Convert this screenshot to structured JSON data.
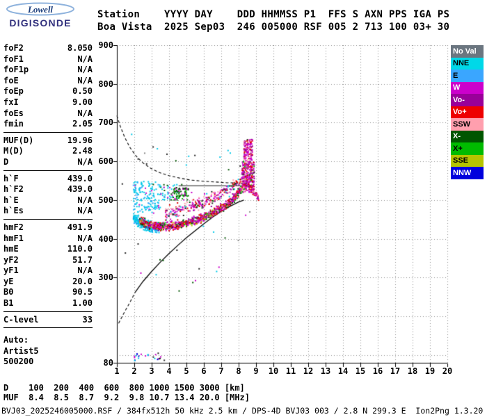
{
  "logo": {
    "line1": "Lowell",
    "line2": "DIGISONDE"
  },
  "header": {
    "line1": "Station    YYYY DAY    DDD HHMMSS P1  FFS S AXN PPS IGA PS",
    "line2": "Boa Vista  2025 Sep03  246 005000 RSF 005 2 713 100 03+ 30"
  },
  "params": [
    {
      "label": "foF2",
      "value": "8.050"
    },
    {
      "label": "foF1",
      "value": "N/A"
    },
    {
      "label": "foF1p",
      "value": "N/A"
    },
    {
      "label": "foE",
      "value": "N/A"
    },
    {
      "label": "foEp",
      "value": "0.50"
    },
    {
      "label": "fxI",
      "value": "9.00"
    },
    {
      "label": "foEs",
      "value": "N/A"
    },
    {
      "label": "fmin",
      "value": "2.05"
    },
    {
      "divider": true
    },
    {
      "label": "MUF(D)",
      "value": "19.96"
    },
    {
      "label": "M(D)",
      "value": "2.48"
    },
    {
      "label": "D",
      "value": "N/A"
    },
    {
      "divider": true
    },
    {
      "label": "h`F",
      "value": "439.0"
    },
    {
      "label": "h`F2",
      "value": "439.0"
    },
    {
      "label": "h`E",
      "value": "N/A"
    },
    {
      "label": "h`Es",
      "value": "N/A"
    },
    {
      "divider": true
    },
    {
      "label": "hmF2",
      "value": "491.9"
    },
    {
      "label": "hmF1",
      "value": "N/A"
    },
    {
      "label": "hmE",
      "value": "110.0"
    },
    {
      "label": "yF2",
      "value": "51.7"
    },
    {
      "label": "yF1",
      "value": "N/A"
    },
    {
      "label": "yE",
      "value": "20.0"
    },
    {
      "label": "B0",
      "value": "90.5"
    },
    {
      "label": "B1",
      "value": "1.00"
    },
    {
      "divider": true
    },
    {
      "label": "C-level",
      "value": "33"
    },
    {
      "divider": true
    }
  ],
  "auto_block": [
    "Auto:",
    "Artist5",
    "500200"
  ],
  "legend": [
    {
      "label": "No Val",
      "color": "#6b7680",
      "text": "#ffffff"
    },
    {
      "label": "NNE",
      "color": "#00d8e8",
      "text": "#000000"
    },
    {
      "label": "E",
      "color": "#3aa6ff",
      "text": "#000000"
    },
    {
      "label": "W",
      "color": "#cc00cc",
      "text": "#ffffff"
    },
    {
      "label": "Vo-",
      "color": "#990099",
      "text": "#ffffff"
    },
    {
      "label": "Vo+",
      "color": "#ee0000",
      "text": "#ffffff"
    },
    {
      "label": "SSW",
      "color": "#ff9fae",
      "text": "#000000"
    },
    {
      "label": "X-",
      "color": "#005500",
      "text": "#ffffff"
    },
    {
      "label": "X+",
      "color": "#00bb00",
      "text": "#000000"
    },
    {
      "label": "SSE",
      "color": "#b5c400",
      "text": "#000000"
    },
    {
      "label": "NNW",
      "color": "#0000dd",
      "text": "#ffffff"
    }
  ],
  "footer": {
    "text": "BVJ03_2025246005000.RSF / 384fx512h 50 kHz 2.5 km / DPS-4D BVJ03 003 / 2.8 N 299.3 E  Ion2Png 1.3.20"
  },
  "chart_data": {
    "type": "scatter",
    "xlim": [
      1,
      20
    ],
    "ylim": [
      80,
      900
    ],
    "x_ticks": [
      1,
      2,
      3,
      4,
      5,
      6,
      7,
      8,
      9,
      10,
      11,
      12,
      13,
      14,
      15,
      16,
      17,
      18,
      19,
      20
    ],
    "y_ticks": [
      900,
      800,
      700,
      600,
      500,
      400,
      300,
      80
    ],
    "grid": {
      "x_step": 1,
      "y_step": 100,
      "style": "dotted"
    },
    "muf_table": {
      "row_labels": [
        "D",
        "MUF"
      ],
      "distances_km": [
        100,
        200,
        400,
        600,
        800,
        1000,
        1500,
        3000
      ],
      "muf_mhz": [
        8.4,
        8.5,
        8.7,
        9.2,
        9.8,
        10.7,
        13.4,
        20.0
      ],
      "units": [
        "[km]",
        "[MHz]"
      ]
    },
    "curves": [
      {
        "name": "true-height-profile",
        "style": "solid",
        "color": "#000000",
        "width": 1.3,
        "points": [
          [
            2.05,
            262
          ],
          [
            2.5,
            290
          ],
          [
            3,
            316
          ],
          [
            3.5,
            340
          ],
          [
            4,
            362
          ],
          [
            4.5,
            383
          ],
          [
            5,
            403
          ],
          [
            5.5,
            421
          ],
          [
            6,
            439
          ],
          [
            6.5,
            456
          ],
          [
            7,
            471
          ],
          [
            7.5,
            484
          ],
          [
            8,
            495
          ],
          [
            8.3,
            500
          ]
        ]
      },
      {
        "name": "profile-extrapolation",
        "style": "dashed",
        "color": "#000000",
        "width": 1.1,
        "points": [
          [
            1.1,
            182
          ],
          [
            1.4,
            208
          ],
          [
            1.75,
            236
          ],
          [
            2.05,
            262
          ]
        ]
      },
      {
        "name": "muf-transmission-curve",
        "style": "dashed",
        "color": "#000000",
        "width": 1.1,
        "points": [
          [
            1.0,
            718
          ],
          [
            1.2,
            690
          ],
          [
            1.45,
            662
          ],
          [
            1.75,
            636
          ],
          [
            2.1,
            614
          ],
          [
            2.5,
            596
          ],
          [
            2.95,
            582
          ],
          [
            3.45,
            571
          ],
          [
            4,
            563
          ],
          [
            4.6,
            557
          ],
          [
            5.2,
            552
          ],
          [
            5.9,
            549
          ],
          [
            6.6,
            547
          ],
          [
            7.3,
            545
          ],
          [
            8,
            544
          ],
          [
            8.35,
            543
          ]
        ]
      },
      {
        "name": "horizontal-marker-line",
        "style": "solid",
        "color": "#111111",
        "width": 1,
        "points": [
          [
            4.55,
            537
          ],
          [
            8.35,
            537
          ]
        ]
      }
    ],
    "clusters": [
      {
        "name": "e-region-echoes",
        "type": "box",
        "x": [
          1.7,
          4.1
        ],
        "y": [
          84,
          106
        ],
        "count": 24,
        "size": 2,
        "colors": [
          [
            "#0000dd",
            3
          ],
          [
            "#cc00cc",
            3
          ],
          [
            "#222222",
            2
          ],
          [
            "#00c8e8",
            2
          ]
        ]
      },
      {
        "name": "f-trace-oblique-cyan",
        "type": "trace",
        "jitter": 15,
        "count": 330,
        "size": 2,
        "trace": [
          [
            1.95,
            455
          ],
          [
            2.3,
            443
          ],
          [
            2.7,
            434
          ],
          [
            3.1,
            430
          ],
          [
            3.45,
            429
          ]
        ],
        "colors": [
          [
            "#00c8e8",
            8
          ],
          [
            "#33aaff",
            1.5
          ],
          [
            "#0000dd",
            0.5
          ]
        ]
      },
      {
        "name": "cyan-spread",
        "type": "box",
        "x": [
          1.95,
          3.5
        ],
        "y": [
          468,
          548
        ],
        "count": 150,
        "size": 2,
        "colors": [
          [
            "#00c8e8",
            7
          ],
          [
            "#33aaff",
            2
          ],
          [
            "#cc00cc",
            1
          ]
        ]
      },
      {
        "name": "cyan-spread-right",
        "type": "box",
        "x": [
          3.5,
          4.6
        ],
        "y": [
          498,
          540
        ],
        "count": 45,
        "size": 2,
        "colors": [
          [
            "#00c8e8",
            6
          ],
          [
            "#005500",
            2
          ],
          [
            "#cc00cc",
            2
          ]
        ]
      },
      {
        "name": "f-trace-main",
        "type": "trace",
        "jitter": 13,
        "count": 950,
        "size": 2,
        "trace": [
          [
            2.3,
            445
          ],
          [
            2.8,
            437
          ],
          [
            3.3,
            433
          ],
          [
            3.8,
            432
          ],
          [
            4.3,
            434
          ],
          [
            4.8,
            438
          ],
          [
            5.3,
            444
          ],
          [
            5.8,
            452
          ],
          [
            6.3,
            462
          ],
          [
            6.8,
            474
          ],
          [
            7.2,
            486
          ],
          [
            7.6,
            500
          ],
          [
            7.9,
            513
          ],
          [
            8.15,
            527
          ],
          [
            8.35,
            540
          ],
          [
            8.5,
            552
          ]
        ],
        "colors": [
          [
            "#e00000",
            30
          ],
          [
            "#cc00cc",
            28
          ],
          [
            "#990099",
            12
          ],
          [
            "#ff9fae",
            8
          ],
          [
            "#005500",
            8
          ],
          [
            "#00bb00",
            5
          ],
          [
            "#222222",
            5
          ],
          [
            "#b5c400",
            4
          ]
        ]
      },
      {
        "name": "spread-f-above-trace",
        "type": "trace",
        "jitter": 20,
        "count": 280,
        "size": 2,
        "trace": [
          [
            3.8,
            465
          ],
          [
            4.5,
            472
          ],
          [
            5.2,
            481
          ],
          [
            6,
            494
          ],
          [
            6.8,
            511
          ],
          [
            7.4,
            527
          ],
          [
            8,
            543
          ],
          [
            8.4,
            556
          ]
        ],
        "colors": [
          [
            "#cc00cc",
            35
          ],
          [
            "#e00000",
            20
          ],
          [
            "#ff9fae",
            15
          ],
          [
            "#990099",
            12
          ],
          [
            "#005500",
            8
          ],
          [
            "#222222",
            5
          ],
          [
            "#00c8e8",
            5
          ]
        ]
      },
      {
        "name": "green-patch",
        "type": "box",
        "x": [
          4.2,
          5.15
        ],
        "y": [
          500,
          533
        ],
        "count": 70,
        "size": 2,
        "colors": [
          [
            "#005500",
            4
          ],
          [
            "#00bb00",
            3
          ],
          [
            "#222222",
            1.5
          ],
          [
            "#cc00cc",
            1.5
          ]
        ]
      },
      {
        "name": "cusp-column-lower",
        "type": "box",
        "x": [
          8.2,
          8.9
        ],
        "y": [
          520,
          600
        ],
        "count": 260,
        "size": 2,
        "colors": [
          [
            "#cc00cc",
            40
          ],
          [
            "#e00000",
            22
          ],
          [
            "#990099",
            15
          ],
          [
            "#ff9fae",
            13
          ],
          [
            "#00bb00",
            5
          ],
          [
            "#222222",
            5
          ]
        ]
      },
      {
        "name": "cusp-column-upper",
        "type": "box",
        "x": [
          8.3,
          8.8
        ],
        "y": [
          598,
          657
        ],
        "count": 130,
        "size": 2,
        "colors": [
          [
            "#cc00cc",
            45
          ],
          [
            "#e00000",
            20
          ],
          [
            "#ff9fae",
            15
          ],
          [
            "#990099",
            20
          ]
        ]
      },
      {
        "name": "x-trace-right",
        "type": "trace",
        "jitter": 10,
        "count": 70,
        "size": 2,
        "trace": [
          [
            8.55,
            540
          ],
          [
            8.75,
            528
          ],
          [
            8.95,
            517
          ],
          [
            9.15,
            508
          ]
        ],
        "colors": [
          [
            "#e00000",
            4
          ],
          [
            "#cc00cc",
            3
          ],
          [
            "#990099",
            2
          ],
          [
            "#ff9fae",
            1
          ]
        ]
      },
      {
        "name": "sparse-noise",
        "type": "box",
        "x": [
          1.3,
          8.9
        ],
        "y": [
          250,
          690
        ],
        "count": 45,
        "size": 2,
        "colors": [
          [
            "#222222",
            3
          ],
          [
            "#cc00cc",
            2
          ],
          [
            "#00c8e8",
            2
          ],
          [
            "#005500",
            2
          ],
          [
            "#888888",
            1
          ]
        ]
      }
    ]
  }
}
